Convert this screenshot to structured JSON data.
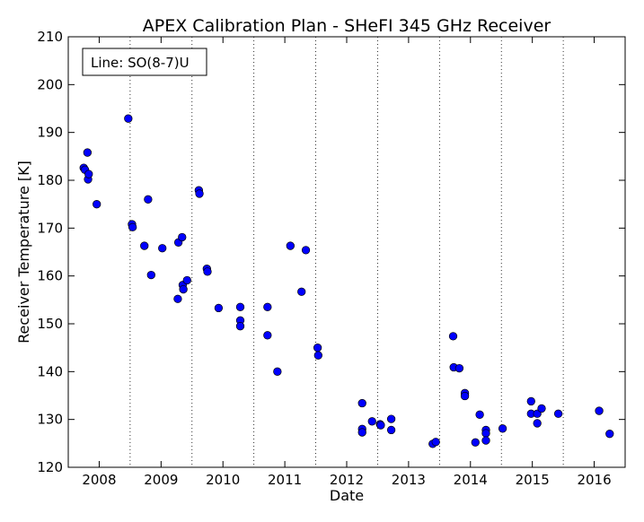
{
  "chart_data": {
    "type": "scatter",
    "title": "APEX Calibration Plan - SHeFI 345 GHz Receiver",
    "xlabel": "Date",
    "ylabel": "Receiver Temperature [K]",
    "legend_text": "Line: SO(8-7)U",
    "legend_position": "top-left",
    "xlim": [
      2007.5,
      2016.5
    ],
    "ylim": [
      120,
      210
    ],
    "x_ticks": [
      2008,
      2009,
      2010,
      2011,
      2012,
      2013,
      2014,
      2015,
      2016
    ],
    "y_ticks": [
      120,
      130,
      140,
      150,
      160,
      170,
      180,
      190,
      200,
      210
    ],
    "vertical_dotted_lines": [
      2008.5,
      2009.5,
      2010.5,
      2011.5,
      2012.5,
      2013.5,
      2014.5,
      2015.5
    ],
    "marker_color": "#0000ff",
    "points": [
      [
        2007.75,
        182.6
      ],
      [
        2007.77,
        182.2
      ],
      [
        2007.81,
        185.8
      ],
      [
        2007.82,
        180.2
      ],
      [
        2007.83,
        181.3
      ],
      [
        2007.96,
        175.0
      ],
      [
        2008.47,
        192.9
      ],
      [
        2008.53,
        170.8
      ],
      [
        2008.54,
        170.2
      ],
      [
        2008.73,
        166.3
      ],
      [
        2008.79,
        176.0
      ],
      [
        2008.84,
        160.2
      ],
      [
        2009.02,
        165.8
      ],
      [
        2009.27,
        155.2
      ],
      [
        2009.28,
        167.0
      ],
      [
        2009.34,
        168.1
      ],
      [
        2009.35,
        158.1
      ],
      [
        2009.36,
        157.2
      ],
      [
        2009.42,
        159.1
      ],
      [
        2009.61,
        177.9
      ],
      [
        2009.62,
        177.2
      ],
      [
        2009.74,
        161.5
      ],
      [
        2009.75,
        160.9
      ],
      [
        2009.93,
        153.3
      ],
      [
        2010.28,
        153.5
      ],
      [
        2010.28,
        150.7
      ],
      [
        2010.28,
        149.5
      ],
      [
        2010.72,
        153.5
      ],
      [
        2010.72,
        147.6
      ],
      [
        2010.88,
        140.0
      ],
      [
        2011.09,
        166.3
      ],
      [
        2011.27,
        156.7
      ],
      [
        2011.34,
        165.4
      ],
      [
        2011.53,
        145.0
      ],
      [
        2011.54,
        143.4
      ],
      [
        2012.25,
        133.4
      ],
      [
        2012.25,
        128.0
      ],
      [
        2012.25,
        127.3
      ],
      [
        2012.41,
        129.6
      ],
      [
        2012.54,
        129.0
      ],
      [
        2012.55,
        128.8
      ],
      [
        2012.72,
        130.1
      ],
      [
        2012.72,
        127.8
      ],
      [
        2013.39,
        124.9
      ],
      [
        2013.44,
        125.3
      ],
      [
        2013.72,
        147.4
      ],
      [
        2013.73,
        140.9
      ],
      [
        2013.82,
        140.7
      ],
      [
        2013.91,
        135.5
      ],
      [
        2013.91,
        134.9
      ],
      [
        2014.08,
        125.2
      ],
      [
        2014.15,
        131.0
      ],
      [
        2014.25,
        127.8
      ],
      [
        2014.25,
        127.1
      ],
      [
        2014.25,
        125.6
      ],
      [
        2014.52,
        128.1
      ],
      [
        2014.98,
        133.8
      ],
      [
        2014.98,
        131.2
      ],
      [
        2015.08,
        129.2
      ],
      [
        2015.08,
        131.2
      ],
      [
        2015.15,
        132.3
      ],
      [
        2015.42,
        131.2
      ],
      [
        2016.08,
        131.8
      ],
      [
        2016.25,
        127.0
      ]
    ]
  }
}
